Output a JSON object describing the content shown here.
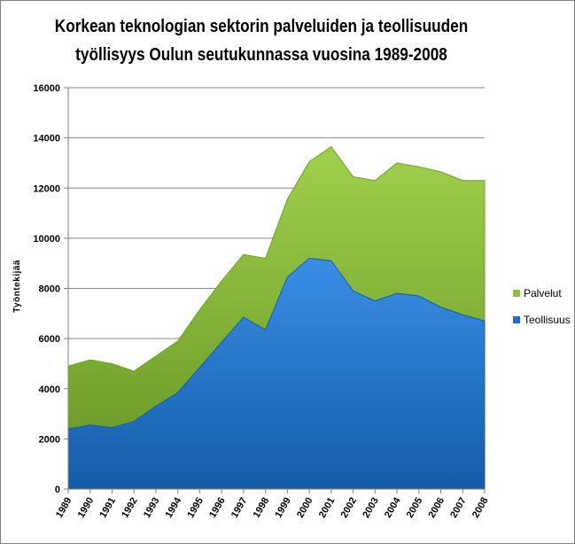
{
  "chart_data": {
    "type": "area",
    "stacked": true,
    "title": "Korkean teknologian sektorin palveluiden ja teollisuuden työllisyys Oulun seutukunnassa vuosina 1989-2008",
    "title_lines": [
      "Korkean teknologian sektorin palveluiden ja teollisuuden",
      "työllisyys Oulun seutukunnassa vuosina 1989-2008"
    ],
    "xlabel": "",
    "ylabel": "Työntekijää",
    "ylim": [
      0,
      16000
    ],
    "yticks": [
      0,
      2000,
      4000,
      6000,
      8000,
      10000,
      12000,
      14000,
      16000
    ],
    "ytick_labels": [
      "0",
      "2000",
      "4000",
      "6000",
      "8000",
      "10000",
      "12000",
      "14000",
      "16000"
    ],
    "categories": [
      "1989",
      "1990",
      "1991",
      "1992",
      "1993",
      "1994",
      "1995",
      "1996",
      "1997",
      "1998",
      "1999",
      "2000",
      "2001",
      "2002",
      "2003",
      "2004",
      "2005",
      "2006",
      "2007",
      "2008"
    ],
    "grid": true,
    "legend_position": "right",
    "series": [
      {
        "name": "Teollisuus",
        "color": "#1f6fc4",
        "values": [
          2400,
          2550,
          2450,
          2700,
          3300,
          3850,
          4850,
          5850,
          6850,
          6350,
          8450,
          9200,
          9100,
          7900,
          7500,
          7800,
          7700,
          7250,
          6950,
          6700
        ]
      },
      {
        "name": "Palvelut",
        "color": "#8cbf3a",
        "values": [
          2500,
          2600,
          2550,
          2000,
          2000,
          2050,
          2300,
          2450,
          2500,
          2850,
          3100,
          3850,
          4550,
          4550,
          4800,
          5200,
          5150,
          5400,
          5350,
          5600
        ]
      }
    ]
  }
}
